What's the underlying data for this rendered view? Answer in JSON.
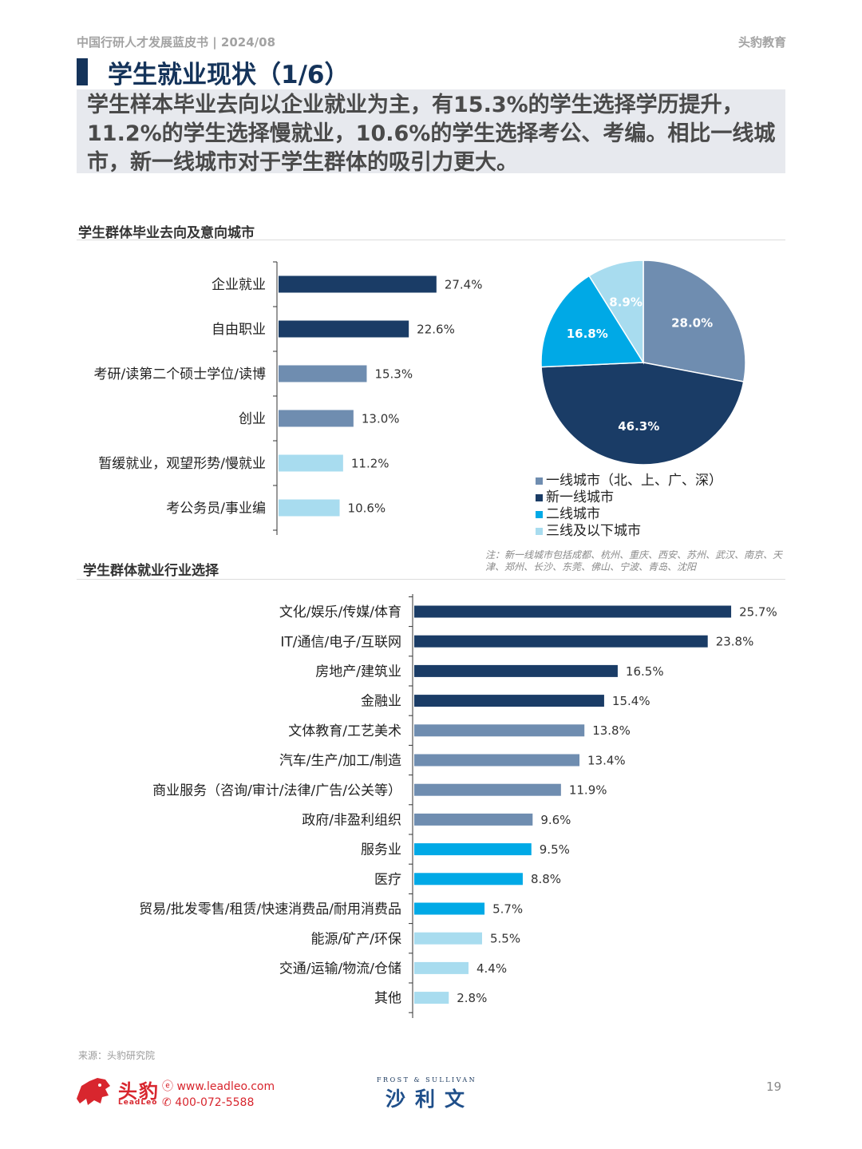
{
  "header": {
    "report": "中国行研人才发展蓝皮书 | 2024/08",
    "brand": "头豹教育"
  },
  "title": "学生就业现状（1/6）",
  "summary": "学生样本毕业去向以企业就业为主，有15.3%的学生选择学历提升，11.2%的学生选择慢就业，10.6%的学生选择考公、考编。相比一线城市，新一线城市对于学生群体的吸引力更大。",
  "section1_title": "学生群体毕业去向及意向城市",
  "section2_title": "学生群体就业行业选择",
  "note": "注：新一线城市包括成都、杭州、重庆、西安、苏州、武汉、南京、天津、郑州、长沙、东莞、佛山、宁波、青岛、沈阳",
  "source": "来源：头豹研究院",
  "footer": {
    "brand_cn": "头豹",
    "brand_en": "LeadLeo",
    "website": "www.leadleo.com",
    "phone": "400-072-5588",
    "partner_en": "FROST & SULLIVAN",
    "partner_cn": "沙利文",
    "page": "19"
  },
  "chart_data": [
    {
      "type": "bar",
      "orientation": "horizontal",
      "title": "学生群体毕业去向及意向城市",
      "categories": [
        "企业就业",
        "自由职业",
        "考研/读第二个硕士学位/读博",
        "创业",
        "暂缓就业，观望形势/慢就业",
        "考公务员/事业编"
      ],
      "values": [
        27.4,
        22.6,
        15.3,
        13.0,
        11.2,
        10.6
      ],
      "labels": [
        "27.4%",
        "22.6%",
        "15.3%",
        "13.0%",
        "11.2%",
        "10.6%"
      ],
      "colors": [
        "#1a3c66",
        "#1a3c66",
        "#6f8db0",
        "#6f8db0",
        "#a8dcef",
        "#a8dcef"
      ],
      "xlim": [
        0,
        28
      ]
    },
    {
      "type": "pie",
      "title": "学生群体毕业去向及意向城市",
      "legend_position": "bottom",
      "slices": [
        {
          "name": "一线城市（北、上、广、深）",
          "value": 28.0,
          "label": "28.0%",
          "color": "#6f8db0"
        },
        {
          "name": "新一线城市",
          "value": 46.3,
          "label": "46.3%",
          "color": "#1a3c66"
        },
        {
          "name": "二线城市",
          "value": 16.8,
          "label": "16.8%",
          "color": "#00a9e6"
        },
        {
          "name": "三线及以下城市",
          "value": 8.9,
          "label": "8.9%",
          "color": "#a8dcef"
        }
      ]
    },
    {
      "type": "bar",
      "orientation": "horizontal",
      "title": "学生群体就业行业选择",
      "categories": [
        "文化/娱乐/传媒/体育",
        "IT/通信/电子/互联网",
        "房地产/建筑业",
        "金融业",
        "文体教育/工艺美术",
        "汽车/生产/加工/制造",
        "商业服务（咨询/审计/法律/广告/公关等）",
        "政府/非盈利组织",
        "服务业",
        "医疗",
        "贸易/批发零售/租赁/快速消费品/耐用消费品",
        "能源/矿产/环保",
        "交通/运输/物流/仓储",
        "其他"
      ],
      "values": [
        25.7,
        23.8,
        16.5,
        15.4,
        13.8,
        13.4,
        11.9,
        9.6,
        9.5,
        8.8,
        5.7,
        5.5,
        4.4,
        2.8
      ],
      "labels": [
        "25.7%",
        "23.8%",
        "16.5%",
        "15.4%",
        "13.8%",
        "13.4%",
        "11.9%",
        "9.6%",
        "9.5%",
        "8.8%",
        "5.7%",
        "5.5%",
        "4.4%",
        "2.8%"
      ],
      "colors": [
        "#1a3c66",
        "#1a3c66",
        "#1a3c66",
        "#1a3c66",
        "#6f8db0",
        "#6f8db0",
        "#6f8db0",
        "#6f8db0",
        "#00a9e6",
        "#00a9e6",
        "#00a9e6",
        "#a8dcef",
        "#a8dcef",
        "#a8dcef"
      ],
      "xlim": [
        0,
        26
      ]
    }
  ]
}
